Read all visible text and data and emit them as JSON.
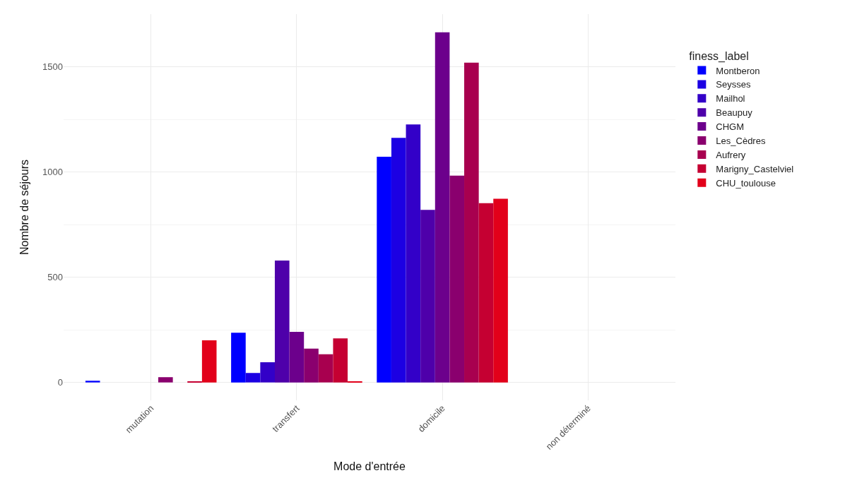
{
  "chart_data": {
    "type": "bar",
    "xlabel": "Mode d'entrée",
    "ylabel": "Nombre de séjours",
    "legend_title": "finess_label",
    "categories": [
      "mutation",
      "transfert",
      "domicile",
      "non déterminé"
    ],
    "series": [
      {
        "name": "Montberon",
        "color": "#0000ff",
        "values": [
          8,
          236,
          1072,
          null
        ]
      },
      {
        "name": "Seysses",
        "color": "#1c00e3",
        "values": [
          null,
          45,
          1162,
          null
        ]
      },
      {
        "name": "Mailhol",
        "color": "#3300c8",
        "values": [
          null,
          96,
          1226,
          null
        ]
      },
      {
        "name": "Beaupuy",
        "color": "#4e00aa",
        "values": [
          null,
          579,
          820,
          null
        ]
      },
      {
        "name": "CHGM",
        "color": "#6c008c",
        "values": [
          null,
          240,
          1664,
          null
        ]
      },
      {
        "name": "Les_Cèdres",
        "color": "#8a006e",
        "values": [
          25,
          161,
          983,
          null
        ]
      },
      {
        "name": "Aufrery",
        "color": "#a8004f",
        "values": [
          null,
          134,
          1519,
          null
        ]
      },
      {
        "name": "Marigny_Castelviel",
        "color": "#c50032",
        "values": [
          3,
          209,
          852,
          null
        ]
      },
      {
        "name": "CHU_toulouse",
        "color": "#e2001a",
        "values": [
          200,
          3,
          873,
          null
        ]
      }
    ],
    "ylim": [
      -85,
      1750
    ],
    "yticks": [
      0,
      {
        "value": 250,
        "label": null
      },
      500,
      {
        "value": 750,
        "label": null
      },
      1000,
      {
        "value": 1250,
        "label": null
      },
      1500
    ],
    "grid": true,
    "legend": "right"
  }
}
